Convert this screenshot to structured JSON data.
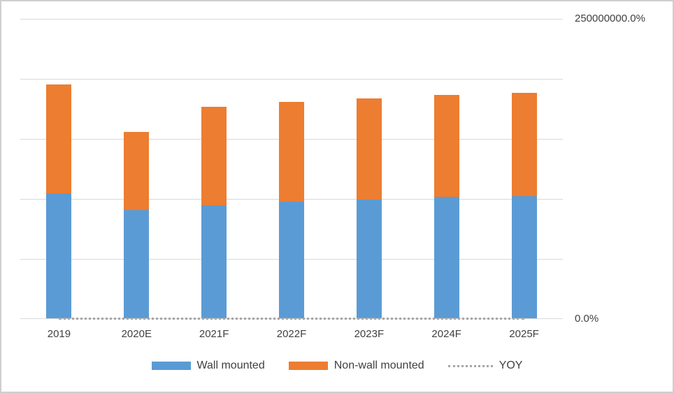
{
  "chart_data": {
    "type": "bar",
    "stacked": true,
    "title": "",
    "xlabel": "",
    "ylabel": "",
    "categories": [
      "2019",
      "2020E",
      "2021F",
      "2022F",
      "2023F",
      "2024F",
      "2025F"
    ],
    "series": [
      {
        "name": "Wall mounted",
        "type": "bar",
        "color": "#5b9bd5",
        "values": [
          104000000,
          90000000,
          94000000,
          97000000,
          99000000,
          101000000,
          102000000
        ]
      },
      {
        "name": "Non-wall mounted",
        "type": "bar",
        "color": "#ed7d31",
        "values": [
          91000000,
          65000000,
          82000000,
          83000000,
          84000000,
          85000000,
          86000000
        ]
      },
      {
        "name": "YOY",
        "type": "line",
        "line_style": "dotted",
        "color": "#a6a6a6",
        "values": [
          0,
          0,
          0,
          0,
          0,
          0,
          0
        ]
      }
    ],
    "right_axis": {
      "max_label": "250000000.0%",
      "min_label": "0.0%",
      "min": 0,
      "max": 250000000
    },
    "ylim": [
      0,
      250000000
    ],
    "grid": true,
    "gridline_count": 6,
    "legend_position": "bottom"
  },
  "colors": {
    "background": "#ffffff",
    "frame_border": "#cfcfcf",
    "gridline": "#d9d9d9",
    "axis_text": "#404040"
  }
}
